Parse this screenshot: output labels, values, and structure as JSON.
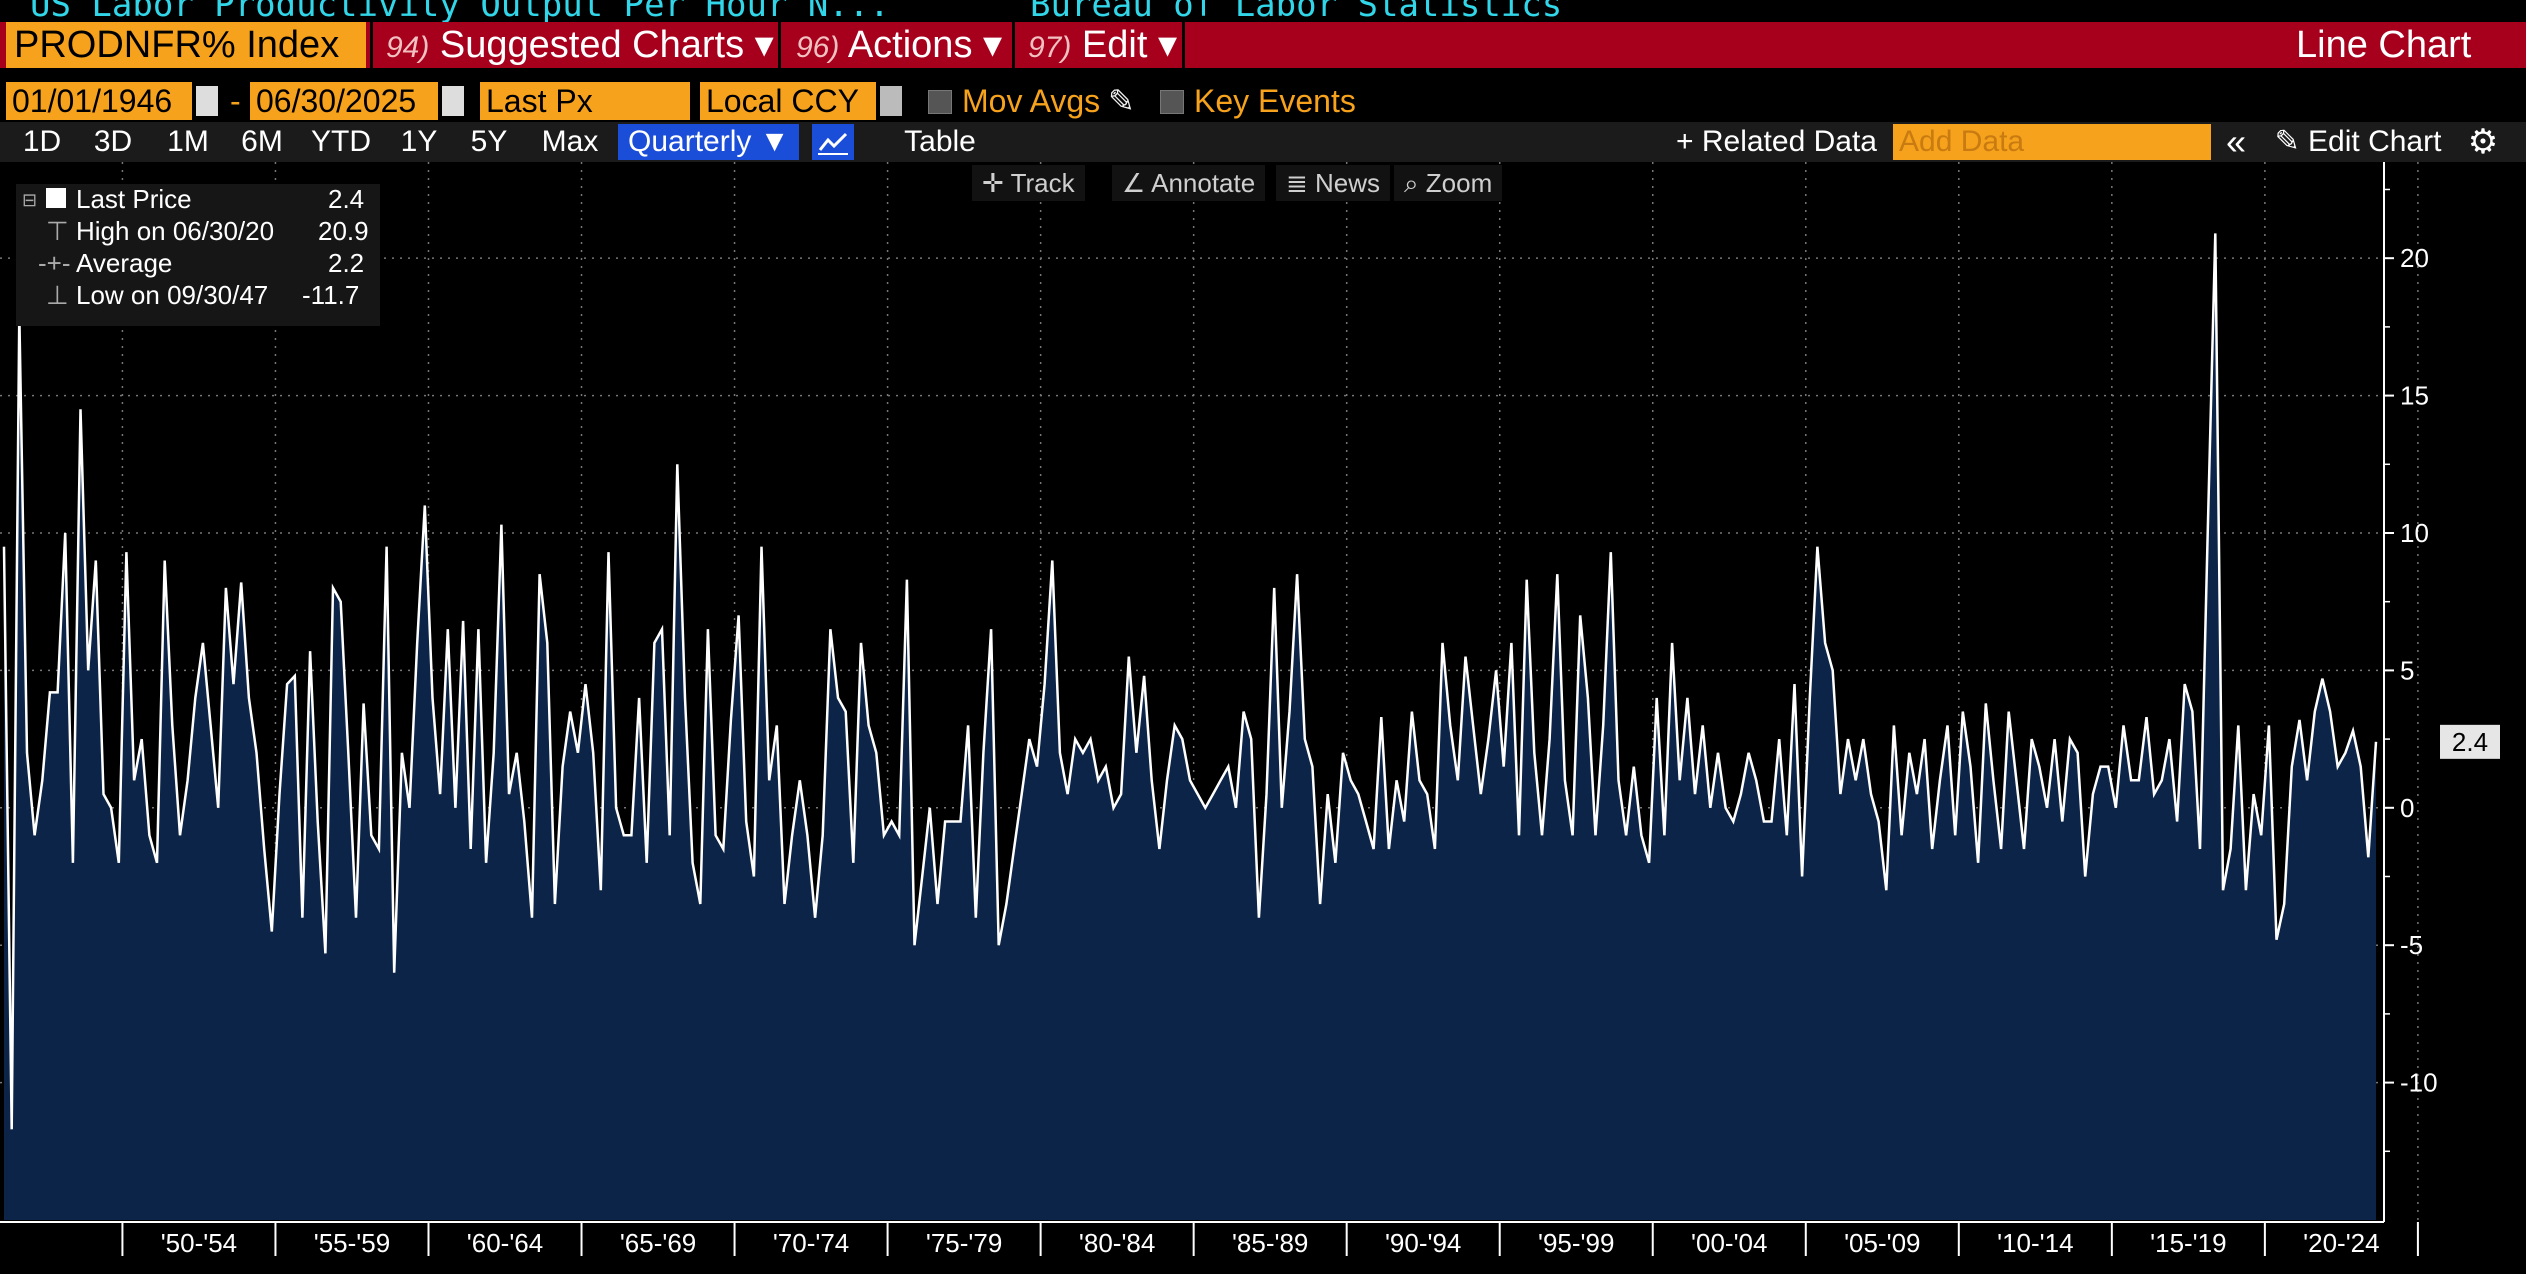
{
  "header": {
    "title_left": "US Labor Productivity Output Per Hour N...",
    "title_source": "Bureau of Labor Statistics",
    "ticker": "PRODNFR% Index",
    "menu": [
      {
        "num": "94)",
        "label": "Suggested Charts ▾"
      },
      {
        "num": "96)",
        "label": "Actions ▾"
      },
      {
        "num": "97)",
        "label": "Edit ▾"
      }
    ],
    "chart_type": "Line Chart"
  },
  "controls": {
    "start_date": "01/01/1946",
    "dash": "-",
    "end_date": "06/30/2025",
    "field": "Last Px",
    "currency": "Local CCY",
    "mov_avgs": "Mov Avgs",
    "key_events": "Key Events"
  },
  "toolbar": {
    "ranges": [
      "1D",
      "3D",
      "1M",
      "6M",
      "YTD",
      "1Y",
      "5Y",
      "Max"
    ],
    "frequency": "Quarterly ▼",
    "table": "Table",
    "related": "+ Related Data",
    "add_data_placeholder": "Add Data",
    "collapse": "«",
    "edit_chart": "Edit Chart",
    "settings": "⚙"
  },
  "tools": {
    "track": "Track",
    "annotate": "Annotate",
    "news": "News",
    "zoom": "Zoom"
  },
  "legend": {
    "last_label": "Last Price",
    "last_value": "2.4",
    "high_label": "High on 06/30/20",
    "high_value": "20.9",
    "avg_label": "Average",
    "avg_value": "2.2",
    "low_label": "Low on 09/30/47",
    "low_value": "-11.7"
  },
  "colors": {
    "series": "#ffffff",
    "area": "#0c2447",
    "accent": "#f6a21c",
    "bar": "#a6001d"
  },
  "chart_data": {
    "type": "area",
    "frequency": "Quarterly",
    "start": "1946-03-31",
    "values": [
      9.5,
      -11.7,
      18.0,
      2.0,
      -1.0,
      1.0,
      4.2,
      4.2,
      10.0,
      -2.0,
      14.5,
      5.0,
      9.0,
      0.5,
      0.0,
      -2.0,
      9.3,
      1.0,
      2.5,
      -1.0,
      -2.0,
      9.0,
      3.0,
      -1.0,
      1.0,
      4.0,
      6.0,
      3.0,
      0.0,
      8.0,
      4.5,
      8.2,
      4.0,
      2.0,
      -1.5,
      -4.5,
      0.5,
      4.5,
      4.8,
      -4.0,
      5.7,
      -0.5,
      -5.3,
      8.0,
      7.5,
      2.0,
      -4.0,
      3.8,
      -1.0,
      -1.5,
      9.5,
      -6.0,
      2.0,
      0.0,
      6.0,
      11.0,
      4.0,
      0.5,
      6.5,
      0.0,
      6.8,
      -1.5,
      6.5,
      -2.0,
      2.0,
      10.3,
      0.5,
      2.0,
      -0.5,
      -4.0,
      8.5,
      6.0,
      -3.5,
      1.5,
      3.5,
      2.0,
      4.5,
      2.0,
      -3.0,
      9.3,
      0.0,
      -1.0,
      -1.0,
      4.0,
      -2.0,
      6.0,
      6.5,
      -1.0,
      12.5,
      4.0,
      -2.0,
      -3.5,
      6.5,
      -1.0,
      -1.5,
      3.2,
      7.0,
      -0.5,
      -2.5,
      9.5,
      1.0,
      3.0,
      -3.5,
      -1.0,
      1.0,
      -1.0,
      -4.0,
      -1.0,
      6.5,
      4.0,
      3.5,
      -2.0,
      6.0,
      3.0,
      2.0,
      -1.0,
      -0.5,
      -1.0,
      8.3,
      -5.0,
      -2.5,
      0.0,
      -3.5,
      -0.5,
      -0.5,
      -0.5,
      3.0,
      -4.0,
      2.0,
      6.5,
      -5.0,
      -3.5,
      -1.5,
      0.5,
      2.5,
      1.5,
      4.5,
      9.0,
      2.0,
      0.5,
      2.5,
      2.0,
      2.5,
      1.0,
      1.5,
      0.0,
      0.5,
      5.5,
      2.0,
      4.8,
      1.0,
      -1.5,
      1.0,
      3.0,
      2.5,
      1.0,
      0.5,
      0.0,
      0.5,
      1.0,
      1.5,
      0.0,
      3.5,
      2.5,
      -4.0,
      0.5,
      8.0,
      0.0,
      3.5,
      8.5,
      2.5,
      1.5,
      -3.5,
      0.5,
      -2.0,
      2.0,
      1.0,
      0.5,
      -0.5,
      -1.5,
      3.3,
      -1.5,
      1.0,
      -0.5,
      3.5,
      1.0,
      0.5,
      -1.5,
      6.0,
      3.0,
      1.0,
      5.5,
      3.0,
      0.5,
      2.5,
      5.0,
      1.5,
      6.0,
      -1.0,
      8.3,
      2.0,
      -1.0,
      2.5,
      8.5,
      1.0,
      -1.0,
      7.0,
      4.0,
      -1.0,
      3.0,
      9.3,
      1.0,
      -1.0,
      1.5,
      -1.0,
      -2.0,
      4.0,
      -1.0,
      6.0,
      1.0,
      4.0,
      0.5,
      3.0,
      0.0,
      2.0,
      0.0,
      -0.5,
      0.5,
      2.0,
      1.0,
      -0.5,
      -0.5,
      2.5,
      -1.0,
      4.5,
      -2.5,
      4.0,
      9.5,
      6.0,
      5.0,
      0.5,
      2.5,
      1.0,
      2.5,
      0.5,
      -0.5,
      -3.0,
      3.0,
      -1.0,
      2.0,
      0.5,
      2.5,
      -1.5,
      1.0,
      3.0,
      -1.0,
      3.5,
      1.5,
      -2.0,
      3.8,
      1.0,
      -1.5,
      3.5,
      1.0,
      -1.5,
      2.5,
      1.5,
      0.0,
      2.5,
      -0.5,
      2.5,
      2.0,
      -2.5,
      0.5,
      1.5,
      1.5,
      0.0,
      3.0,
      1.0,
      1.0,
      3.3,
      0.5,
      1.0,
      2.5,
      -0.5,
      4.5,
      3.5,
      -1.5,
      10.0,
      20.9,
      -3.0,
      -1.5,
      3.0,
      -3.0,
      0.5,
      -1.0,
      3.0,
      -4.8,
      -3.5,
      1.5,
      3.2,
      1.0,
      3.5,
      4.7,
      3.5,
      1.5,
      2.0,
      2.8,
      1.5,
      -1.8,
      2.4
    ],
    "ylim": [
      -15,
      23.5
    ],
    "yticks": [
      -10,
      -5,
      0,
      5,
      10,
      15,
      20
    ],
    "last_value": 2.4,
    "x_labels": [
      "'50-'54",
      "'55-'59",
      "'60-'64",
      "'65-'69",
      "'70-'74",
      "'75-'79",
      "'80-'84",
      "'85-'89",
      "'90-'94",
      "'95-'99",
      "'00-'04",
      "'05-'09",
      "'10-'14",
      "'15-'19",
      "'20-'24"
    ]
  }
}
